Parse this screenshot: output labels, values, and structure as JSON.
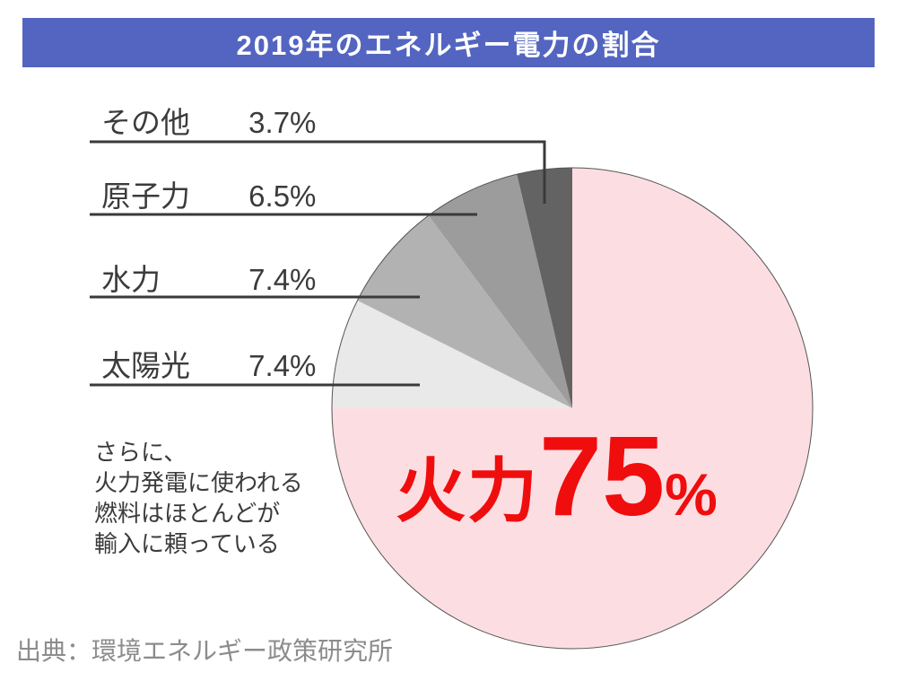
{
  "title": "2019年のエネルギー電力の割合",
  "chart_data": {
    "type": "pie",
    "title": "2019年のエネルギー電力の割合",
    "start_angle_deg": 0,
    "direction": "clockwise",
    "segments": [
      {
        "key": "thermal",
        "label": "火力",
        "value": 75,
        "display": "75%",
        "color": "#fcdee2"
      },
      {
        "key": "solar",
        "label": "太陽光",
        "value": 7.4,
        "display": "7.4%",
        "color": "#e9e9e9"
      },
      {
        "key": "hydro",
        "label": "水力",
        "value": 7.4,
        "display": "7.4%",
        "color": "#b2b2b2"
      },
      {
        "key": "nuclear",
        "label": "原子力",
        "value": 6.5,
        "display": "6.5%",
        "color": "#9c9c9c"
      },
      {
        "key": "other",
        "label": "その他",
        "value": 3.7,
        "display": "3.7%",
        "color": "#636363"
      }
    ],
    "center_label": {
      "text": "火力",
      "value": "75",
      "unit": "%"
    },
    "annotation": "さらに、\n火力発電に使われる\n燃料はほとんどが\n輸入に頼っている",
    "source": "出典：環境エネルギー政策研究所",
    "legend_position": "left",
    "colors": {
      "title_bar": "#5365c0",
      "title_text": "#ffffff",
      "callout_text": "#f00d0d",
      "label_text": "#3b3b3b",
      "leader_line": "#3a3a3a",
      "pie_outline": "#555555",
      "source_text": "#8c8c8c"
    }
  }
}
